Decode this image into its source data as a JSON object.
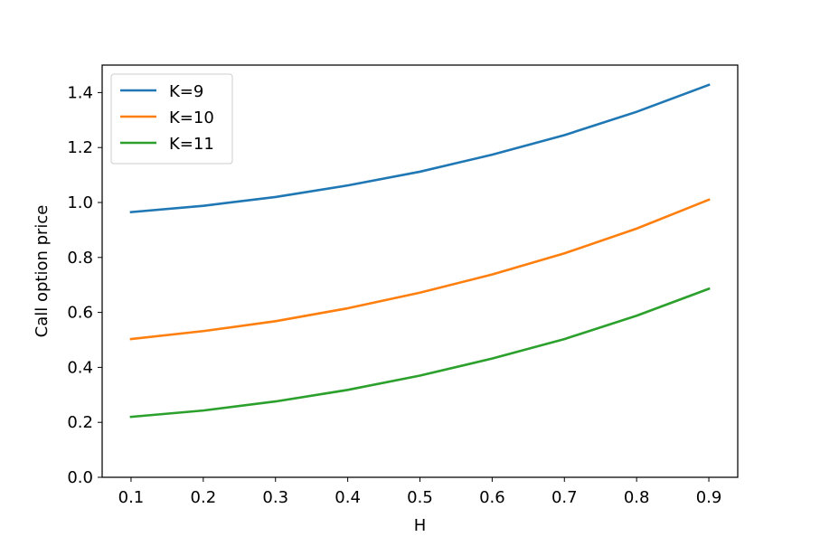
{
  "chart_data": {
    "type": "line",
    "title": "",
    "xlabel": "H",
    "ylabel": "Call option price",
    "x": [
      0.1,
      0.2,
      0.3,
      0.4,
      0.5,
      0.6,
      0.7,
      0.8,
      0.9
    ],
    "xticks": [
      "0.1",
      "0.2",
      "0.3",
      "0.4",
      "0.5",
      "0.6",
      "0.7",
      "0.8",
      "0.9"
    ],
    "yticks": [
      "0.0",
      "0.2",
      "0.4",
      "0.6",
      "0.8",
      "1.0",
      "1.2",
      "1.4"
    ],
    "xlim": [
      0.06,
      0.94
    ],
    "ylim": [
      0.0,
      1.5
    ],
    "grid": false,
    "legend_position": "top-left",
    "series": [
      {
        "name": "K=9",
        "color": "#1f77b4",
        "values": [
          0.965,
          0.988,
          1.02,
          1.062,
          1.112,
          1.174,
          1.245,
          1.33,
          1.428
        ]
      },
      {
        "name": "K=10",
        "color": "#ff7f0e",
        "values": [
          0.503,
          0.532,
          0.568,
          0.615,
          0.672,
          0.738,
          0.815,
          0.905,
          1.01
        ]
      },
      {
        "name": "K=11",
        "color": "#2ca02c",
        "values": [
          0.22,
          0.243,
          0.276,
          0.318,
          0.37,
          0.432,
          0.503,
          0.588,
          0.686
        ]
      }
    ]
  }
}
